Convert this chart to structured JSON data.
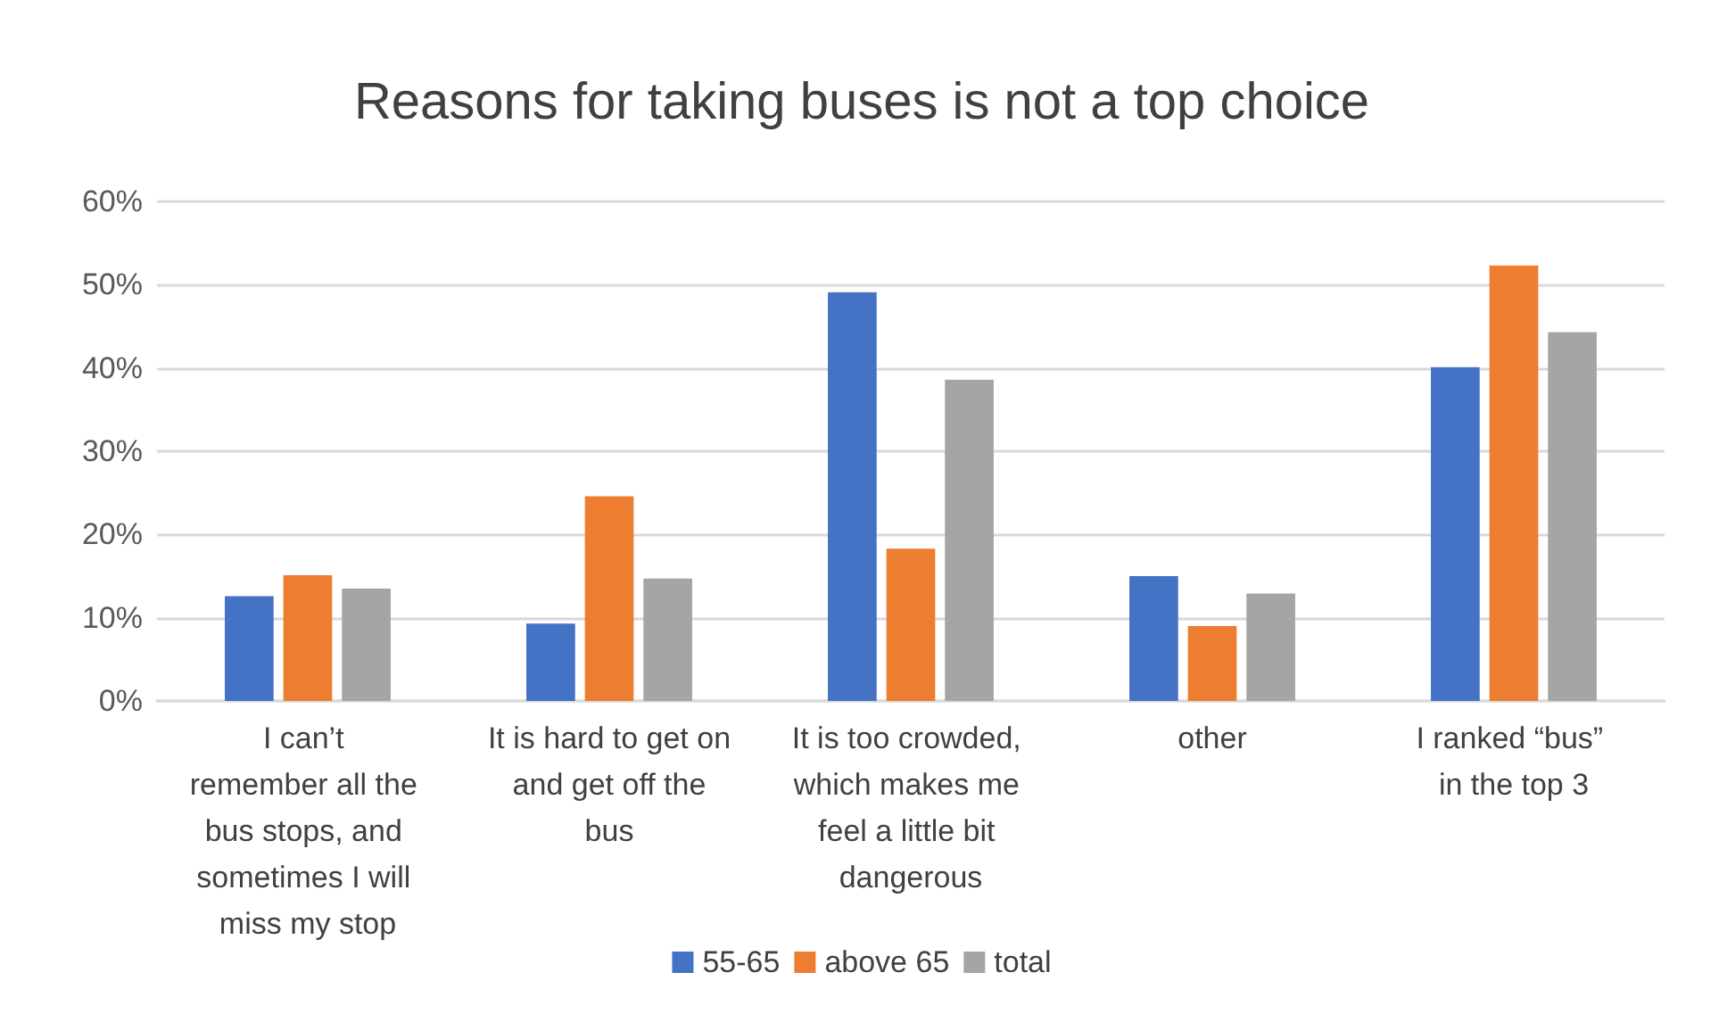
{
  "chart_data": {
    "type": "bar",
    "title": "Reasons for taking buses is not a top choice",
    "categories": [
      "I can’t remember all the bus stops, and sometimes I will miss my stop",
      "It is hard to get on and get off the bus",
      "It is too crowded, which makes me feel a little bit dangerous",
      "other",
      "I ranked “bus” in the top 3"
    ],
    "series": [
      {
        "name": "55-65",
        "color": "#4472c4",
        "values": [
          12.6,
          9.3,
          49.1,
          15.0,
          40.1
        ]
      },
      {
        "name": "above 65",
        "color": "#ed7d31",
        "values": [
          15.1,
          24.6,
          18.3,
          9.0,
          52.3
        ]
      },
      {
        "name": "total",
        "color": "#a5a5a5",
        "values": [
          13.5,
          14.7,
          38.6,
          12.9,
          44.3
        ]
      }
    ],
    "ylim": [
      0,
      60
    ],
    "yticks": [
      {
        "value": 0,
        "label": "0%"
      },
      {
        "value": 10,
        "label": "10%"
      },
      {
        "value": 20,
        "label": "20%"
      },
      {
        "value": 30,
        "label": "30%"
      },
      {
        "value": 40,
        "label": "40%"
      },
      {
        "value": 50,
        "label": "50%"
      },
      {
        "value": 60,
        "label": "60%"
      }
    ],
    "grid": "y",
    "legend": "bottom"
  }
}
